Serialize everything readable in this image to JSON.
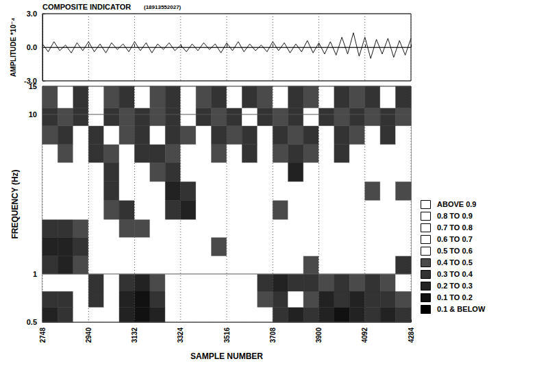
{
  "chart_data": [
    {
      "type": "line",
      "title": "COMPOSITE INDICATOR",
      "subtitle": "(18913552027)",
      "ylabel": "AMPLITUDE *10⁻⁴",
      "color": "#000000",
      "grid": true,
      "tick_labels": "y",
      "xlim": [
        2748,
        4284
      ],
      "xticks": [
        2748,
        2940,
        3132,
        3324,
        3516,
        3708,
        3900,
        4092,
        4284
      ],
      "ylim": [
        -3,
        3
      ],
      "yticks": [
        {
          "value": -3,
          "label": "-3.0"
        },
        {
          "value": 0,
          "label": "0.0"
        },
        {
          "value": 3,
          "label": "3.0"
        }
      ],
      "x": [
        2748,
        2772,
        2796,
        2820,
        2844,
        2868,
        2892,
        2916,
        2940,
        2964,
        2988,
        3012,
        3036,
        3060,
        3084,
        3108,
        3132,
        3156,
        3180,
        3204,
        3228,
        3252,
        3276,
        3300,
        3324,
        3348,
        3372,
        3396,
        3420,
        3444,
        3468,
        3492,
        3516,
        3540,
        3564,
        3588,
        3612,
        3636,
        3660,
        3684,
        3708,
        3732,
        3756,
        3780,
        3804,
        3828,
        3852,
        3876,
        3900,
        3924,
        3948,
        3972,
        3996,
        4020,
        4044,
        4068,
        4092,
        4116,
        4140,
        4164,
        4188,
        4212,
        4236,
        4260,
        4284
      ],
      "values": [
        0.3,
        -0.4,
        0.5,
        -0.3,
        0.2,
        -0.5,
        0.4,
        -0.3,
        0.5,
        -0.4,
        0.3,
        -0.5,
        0.4,
        -0.2,
        0.3,
        -0.4,
        0.5,
        -0.3,
        0.4,
        -0.5,
        0.3,
        -0.2,
        0.4,
        -0.3,
        0.2,
        -0.4,
        0.3,
        -0.3,
        0.4,
        -0.2,
        0.3,
        -0.5,
        0.4,
        -0.3,
        0.5,
        -0.4,
        0.3,
        -0.3,
        0.2,
        -0.4,
        0.5,
        -0.3,
        0.4,
        -0.5,
        0.3,
        -0.4,
        0.6,
        -0.5,
        0.4,
        -0.6,
        0.5,
        -0.7,
        0.9,
        -0.6,
        1.3,
        -0.8,
        0.9,
        -1.0,
        0.7,
        -0.6,
        0.8,
        -0.9,
        0.6,
        -0.7,
        0.8
      ]
    },
    {
      "type": "heatmap",
      "xlabel": "SAMPLE NUMBER",
      "ylabel": "FREQUENCY (Hz)",
      "log": "y",
      "grid": true,
      "xlim": [
        2748,
        4284
      ],
      "xticks": [
        2748,
        2940,
        3132,
        3324,
        3516,
        3708,
        3900,
        4092,
        4284
      ],
      "ylim": [
        0.5,
        15
      ],
      "yticks": [
        0.5,
        1,
        10,
        15
      ],
      "x_bins": [
        2748,
        2812,
        2876,
        2940,
        3004,
        3068,
        3132,
        3196,
        3260,
        3324,
        3388,
        3452,
        3516,
        3580,
        3644,
        3708,
        3772,
        3836,
        3900,
        3964,
        4028,
        4092,
        4156,
        4220,
        4284
      ],
      "y_bins": [
        0.5,
        0.62,
        0.78,
        1.0,
        1.3,
        1.7,
        2.2,
        2.9,
        3.8,
        5,
        6.5,
        8.5,
        11,
        15
      ],
      "cells": [
        [
          0.2,
          0.3,
          0.8,
          0.6,
          0.9,
          0.2,
          0.1,
          0.2,
          0.8,
          0.9,
          0.9,
          0.9,
          0.9,
          0.9,
          0.8,
          0.3,
          0.2,
          0.3,
          0.2,
          0.1,
          0.2,
          0.3,
          0.2,
          0.3
        ],
        [
          0.3,
          0.3,
          0.9,
          0.3,
          0.8,
          0.2,
          0.1,
          0.3,
          0.9,
          0.9,
          0.9,
          0.9,
          0.9,
          0.9,
          0.4,
          0.3,
          0.6,
          0.4,
          0.2,
          0.3,
          0.2,
          0.3,
          0.3,
          0.4
        ],
        [
          0.7,
          0.8,
          0.9,
          0.3,
          0.9,
          0.3,
          0.2,
          0.4,
          0.9,
          0.9,
          0.9,
          0.9,
          0.9,
          0.9,
          0.3,
          0.2,
          0.3,
          0.3,
          0.4,
          0.3,
          0.4,
          0.3,
          0.4,
          0.6
        ],
        [
          0.3,
          0.2,
          0.4,
          0.8,
          0.9,
          0.9,
          0.9,
          0.9,
          0.9,
          0.9,
          0.9,
          0.9,
          0.9,
          0.9,
          0.9,
          0.9,
          0.9,
          0.4,
          0.9,
          0.9,
          0.7,
          0.9,
          0.9,
          0.3
        ],
        [
          0.2,
          0.2,
          0.3,
          0.8,
          0.9,
          0.7,
          0.9,
          0.9,
          0.9,
          0.9,
          0.9,
          0.4,
          0.9,
          0.9,
          0.9,
          0.9,
          0.9,
          0.9,
          0.9,
          0.9,
          0.9,
          0.9,
          0.8,
          0.9
        ],
        [
          0.3,
          0.3,
          0.4,
          0.9,
          0.6,
          0.4,
          0.4,
          0.9,
          0.9,
          0.9,
          0.9,
          0.8,
          0.9,
          0.9,
          0.9,
          0.7,
          0.9,
          0.9,
          0.9,
          0.9,
          0.9,
          0.9,
          0.6,
          0.9
        ],
        [
          0.9,
          0.9,
          0.9,
          0.9,
          0.4,
          0.3,
          0.7,
          0.9,
          0.3,
          0.2,
          0.6,
          0.9,
          0.9,
          0.9,
          0.9,
          0.4,
          0.9,
          0.9,
          0.9,
          0.9,
          0.9,
          0.6,
          0.5,
          0.9
        ],
        [
          0.9,
          0.9,
          0.9,
          0.6,
          0.3,
          0.7,
          0.8,
          0.5,
          0.2,
          0.3,
          0.7,
          0.9,
          0.9,
          0.9,
          0.9,
          0.8,
          0.5,
          0.9,
          0.9,
          0.9,
          0.9,
          0.4,
          0.8,
          0.4
        ],
        [
          0.8,
          0.9,
          0.9,
          0.5,
          0.3,
          0.8,
          0.7,
          0.4,
          0.3,
          0.6,
          0.9,
          0.5,
          0.9,
          0.9,
          0.9,
          0.7,
          0.2,
          0.6,
          0.9,
          0.7,
          0.9,
          0.5,
          0.9,
          0.9
        ],
        [
          0.6,
          0.4,
          0.7,
          0.3,
          0.4,
          0.6,
          0.3,
          0.3,
          0.4,
          0.6,
          0.8,
          0.4,
          0.7,
          0.3,
          0.6,
          0.4,
          0.3,
          0.4,
          0.7,
          0.3,
          0.6,
          0.7,
          0.7,
          0.8
        ],
        [
          0.4,
          0.3,
          0.5,
          0.3,
          0.6,
          0.4,
          0.3,
          0.5,
          0.3,
          0.4,
          0.6,
          0.3,
          0.4,
          0.3,
          0.5,
          0.3,
          0.4,
          0.3,
          0.6,
          0.3,
          0.4,
          0.6,
          0.3,
          0.6
        ],
        [
          0.3,
          0.4,
          0.3,
          0.6,
          0.3,
          0.4,
          0.3,
          0.4,
          0.3,
          0.5,
          0.3,
          0.4,
          0.3,
          0.5,
          0.3,
          0.4,
          0.3,
          0.5,
          0.3,
          0.4,
          0.3,
          0.4,
          0.3,
          0.4
        ],
        [
          0.4,
          0.6,
          0.3,
          0.7,
          0.4,
          0.3,
          0.6,
          0.4,
          0.3,
          0.6,
          0.4,
          0.3,
          0.6,
          0.3,
          0.4,
          0.6,
          0.3,
          0.4,
          0.7,
          0.3,
          0.4,
          0.3,
          0.6,
          0.3
        ]
      ],
      "levels": [
        {
          "label": "ABOVE 0.9",
          "min": 0.9,
          "max": null,
          "color": "#ffffff"
        },
        {
          "label": "0.8 TO 0.9",
          "min": 0.8,
          "max": 0.9,
          "color": "#ffffff"
        },
        {
          "label": "0.7 TO 0.8",
          "min": 0.7,
          "max": 0.8,
          "color": "#ffffff"
        },
        {
          "label": "0.6 TO 0.7",
          "min": 0.6,
          "max": 0.7,
          "color": "#ffffff"
        },
        {
          "label": "0.5 TO 0.6",
          "min": 0.5,
          "max": 0.6,
          "color": "#ffffff"
        },
        {
          "label": "0.4 TO 0.5",
          "min": 0.4,
          "max": 0.5,
          "color": "#4a4a4a"
        },
        {
          "label": "0.3 TO 0.4",
          "min": 0.3,
          "max": 0.4,
          "color": "#333333"
        },
        {
          "label": "0.2 TO 0.3",
          "min": 0.2,
          "max": 0.3,
          "color": "#222222"
        },
        {
          "label": "0.1 TO 0.2",
          "min": 0.1,
          "max": 0.2,
          "color": "#111111"
        },
        {
          "label": "0.1 & BELOW",
          "min": null,
          "max": 0.1,
          "color": "#000000"
        }
      ]
    }
  ]
}
